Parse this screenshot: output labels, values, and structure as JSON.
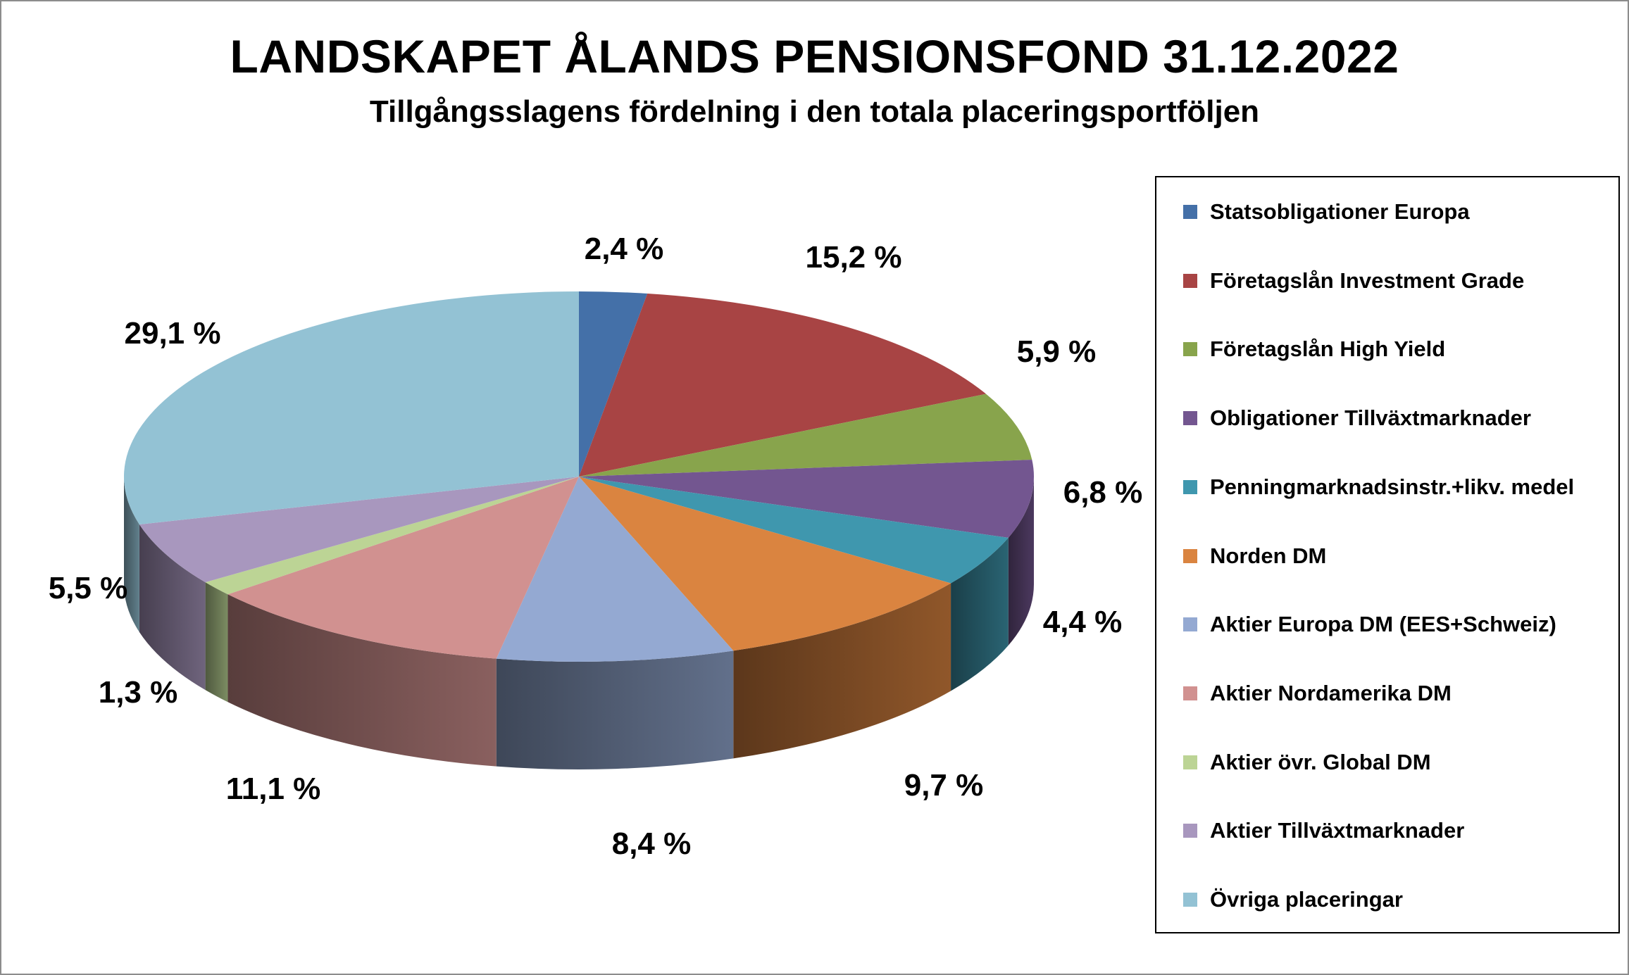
{
  "chart_data": {
    "type": "pie",
    "title": "LANDSKAPET ÅLANDS PENSIONSFOND 31.12.2022",
    "subtitle": "Tillgångsslagens fördelning i den totala placeringsportföljen",
    "legend_position": "right",
    "slices": [
      {
        "name": "Statsobligationer Europa",
        "value": 2.4,
        "label": "2,4 %",
        "color": "#4470A8"
      },
      {
        "name": "Företagslån Investment Grade",
        "value": 15.2,
        "label": "15,2 %",
        "color": "#A84444"
      },
      {
        "name": "Företagslån High Yield",
        "value": 5.9,
        "label": "5,9 %",
        "color": "#88A44C"
      },
      {
        "name": "Obligationer Tillväxtmarknader",
        "value": 6.8,
        "label": "6,8 %",
        "color": "#735690"
      },
      {
        "name": "Penningmarknadsinstr.+likv. medel",
        "value": 4.4,
        "label": "4,4 %",
        "color": "#3F97AE"
      },
      {
        "name": "Norden DM",
        "value": 9.7,
        "label": "9,7 %",
        "color": "#DA8440"
      },
      {
        "name": "Aktier Europa DM (EES+Schweiz)",
        "value": 8.4,
        "label": "8,4 %",
        "color": "#94A9D2"
      },
      {
        "name": "Aktier Nordamerika DM",
        "value": 11.1,
        "label": "11,1 %",
        "color": "#D19190"
      },
      {
        "name": "Aktier övr. Global DM",
        "value": 1.3,
        "label": "1,3 %",
        "color": "#BCD495"
      },
      {
        "name": "Aktier Tillväxtmarknader",
        "value": 5.5,
        "label": "5,5 %",
        "color": "#A897BE"
      },
      {
        "name": "Övriga placeringar",
        "value": 29.1,
        "label": "29,1 %",
        "color": "#93C2D4"
      }
    ]
  }
}
